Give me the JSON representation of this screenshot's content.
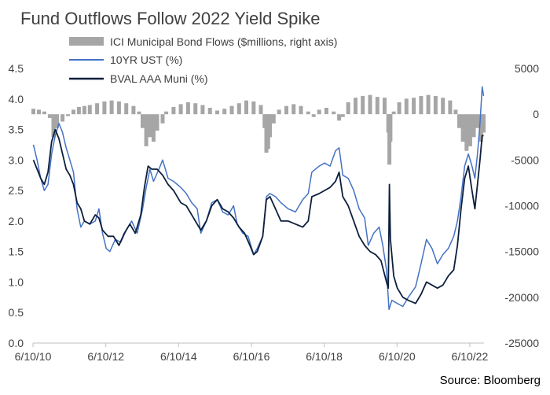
{
  "chart_data": {
    "type": "line",
    "title": "Fund Outflows Follow 2022 Yield Spike",
    "source": "Source: Bloomberg",
    "x_tick_labels": [
      "6/10/10",
      "6/10/12",
      "6/10/14",
      "6/10/16",
      "6/10/18",
      "6/10/20",
      "6/10/22"
    ],
    "x_range": [
      "2010-06-10",
      "2022-10-31"
    ],
    "left_axis": {
      "range": [
        0,
        4.5
      ],
      "tick_values": [
        0,
        0.5,
        1,
        1.5,
        2,
        2.5,
        3,
        3.5,
        4,
        4.5
      ],
      "tick_labels": [
        "0.0",
        "0.5",
        "1.0",
        "1.5",
        "2.0",
        "2.5",
        "3.0",
        "3.5",
        "4.0",
        "4.5"
      ]
    },
    "right_axis": {
      "range": [
        -25000,
        5000
      ],
      "tick_values": [
        -25000,
        -20000,
        -15000,
        -10000,
        -5000,
        0,
        5000
      ],
      "tick_labels": [
        "-25000",
        "-20000",
        "-15000",
        "-10000",
        "-5000",
        "0",
        "5000"
      ]
    },
    "series": [
      {
        "name": "ICI Municipal Bond Flows ($millions, right axis)",
        "type": "bar",
        "axis": "right",
        "color": "#a6a6a6",
        "points": [
          [
            2010.45,
            600
          ],
          [
            2010.6,
            500
          ],
          [
            2010.75,
            300
          ],
          [
            2010.9,
            -400
          ],
          [
            2011.0,
            -2500
          ],
          [
            2011.1,
            -1500
          ],
          [
            2011.25,
            -800
          ],
          [
            2011.4,
            -200
          ],
          [
            2011.55,
            500
          ],
          [
            2011.7,
            800
          ],
          [
            2011.85,
            900
          ],
          [
            2012.0,
            1000
          ],
          [
            2012.2,
            1200
          ],
          [
            2012.4,
            1400
          ],
          [
            2012.6,
            1500
          ],
          [
            2012.8,
            1400
          ],
          [
            2013.0,
            1200
          ],
          [
            2013.2,
            900
          ],
          [
            2013.35,
            300
          ],
          [
            2013.45,
            -1500
          ],
          [
            2013.55,
            -3500
          ],
          [
            2013.65,
            -2500
          ],
          [
            2013.75,
            -3000
          ],
          [
            2013.85,
            -1800
          ],
          [
            2014.0,
            -1000
          ],
          [
            2014.1,
            300
          ],
          [
            2014.3,
            800
          ],
          [
            2014.5,
            1100
          ],
          [
            2014.7,
            1300
          ],
          [
            2014.9,
            1200
          ],
          [
            2015.1,
            1000
          ],
          [
            2015.3,
            700
          ],
          [
            2015.5,
            400
          ],
          [
            2015.7,
            600
          ],
          [
            2015.9,
            900
          ],
          [
            2016.1,
            1200
          ],
          [
            2016.3,
            1500
          ],
          [
            2016.5,
            1400
          ],
          [
            2016.7,
            1000
          ],
          [
            2016.8,
            -1500
          ],
          [
            2016.85,
            -4200
          ],
          [
            2016.9,
            -3800
          ],
          [
            2016.95,
            -2500
          ],
          [
            2017.05,
            -1000
          ],
          [
            2017.2,
            500
          ],
          [
            2017.4,
            900
          ],
          [
            2017.6,
            1100
          ],
          [
            2017.8,
            900
          ],
          [
            2018.0,
            300
          ],
          [
            2018.15,
            -300
          ],
          [
            2018.3,
            500
          ],
          [
            2018.5,
            700
          ],
          [
            2018.7,
            300
          ],
          [
            2018.85,
            -700
          ],
          [
            2018.95,
            -300
          ],
          [
            2019.1,
            1300
          ],
          [
            2019.3,
            1800
          ],
          [
            2019.5,
            2000
          ],
          [
            2019.7,
            2100
          ],
          [
            2019.9,
            1900
          ],
          [
            2020.1,
            1800
          ],
          [
            2020.2,
            -2000
          ],
          [
            2020.23,
            -5500
          ],
          [
            2020.26,
            -3000
          ],
          [
            2020.35,
            300
          ],
          [
            2020.5,
            1300
          ],
          [
            2020.7,
            1700
          ],
          [
            2020.9,
            1800
          ],
          [
            2021.1,
            2000
          ],
          [
            2021.3,
            2100
          ],
          [
            2021.5,
            2000
          ],
          [
            2021.7,
            1800
          ],
          [
            2021.9,
            1500
          ],
          [
            2022.05,
            500
          ],
          [
            2022.15,
            -1500
          ],
          [
            2022.25,
            -3000
          ],
          [
            2022.35,
            -4000
          ],
          [
            2022.45,
            -3500
          ],
          [
            2022.55,
            -2500
          ],
          [
            2022.65,
            -1500
          ],
          [
            2022.75,
            -3000
          ],
          [
            2022.82,
            -2000
          ]
        ]
      },
      {
        "name": "10YR UST (%)",
        "type": "line",
        "axis": "left",
        "color": "#4472c4",
        "points": [
          [
            2010.45,
            3.25
          ],
          [
            2010.55,
            3.0
          ],
          [
            2010.65,
            2.7
          ],
          [
            2010.75,
            2.5
          ],
          [
            2010.85,
            2.6
          ],
          [
            2010.95,
            3.1
          ],
          [
            2011.05,
            3.4
          ],
          [
            2011.15,
            3.6
          ],
          [
            2011.25,
            3.45
          ],
          [
            2011.35,
            3.2
          ],
          [
            2011.45,
            3.0
          ],
          [
            2011.55,
            2.8
          ],
          [
            2011.65,
            2.2
          ],
          [
            2011.75,
            1.9
          ],
          [
            2011.85,
            2.0
          ],
          [
            2012.0,
            1.95
          ],
          [
            2012.15,
            2.0
          ],
          [
            2012.25,
            2.2
          ],
          [
            2012.35,
            1.8
          ],
          [
            2012.45,
            1.55
          ],
          [
            2012.55,
            1.5
          ],
          [
            2012.7,
            1.7
          ],
          [
            2012.85,
            1.65
          ],
          [
            2013.0,
            1.85
          ],
          [
            2013.15,
            2.0
          ],
          [
            2013.3,
            1.8
          ],
          [
            2013.45,
            2.2
          ],
          [
            2013.55,
            2.55
          ],
          [
            2013.65,
            2.85
          ],
          [
            2013.75,
            2.65
          ],
          [
            2013.9,
            2.85
          ],
          [
            2014.0,
            3.0
          ],
          [
            2014.15,
            2.7
          ],
          [
            2014.3,
            2.65
          ],
          [
            2014.5,
            2.55
          ],
          [
            2014.65,
            2.45
          ],
          [
            2014.8,
            2.3
          ],
          [
            2014.95,
            2.2
          ],
          [
            2015.05,
            1.8
          ],
          [
            2015.2,
            2.0
          ],
          [
            2015.35,
            2.3
          ],
          [
            2015.5,
            2.35
          ],
          [
            2015.65,
            2.15
          ],
          [
            2015.8,
            2.1
          ],
          [
            2015.95,
            2.25
          ],
          [
            2016.05,
            1.95
          ],
          [
            2016.2,
            1.8
          ],
          [
            2016.35,
            1.75
          ],
          [
            2016.5,
            1.45
          ],
          [
            2016.6,
            1.55
          ],
          [
            2016.75,
            1.75
          ],
          [
            2016.85,
            2.4
          ],
          [
            2016.95,
            2.45
          ],
          [
            2017.1,
            2.4
          ],
          [
            2017.25,
            2.3
          ],
          [
            2017.45,
            2.2
          ],
          [
            2017.65,
            2.15
          ],
          [
            2017.85,
            2.35
          ],
          [
            2018.0,
            2.45
          ],
          [
            2018.1,
            2.8
          ],
          [
            2018.3,
            2.9
          ],
          [
            2018.45,
            2.95
          ],
          [
            2018.6,
            2.9
          ],
          [
            2018.75,
            3.15
          ],
          [
            2018.85,
            3.2
          ],
          [
            2018.95,
            2.75
          ],
          [
            2019.1,
            2.7
          ],
          [
            2019.25,
            2.5
          ],
          [
            2019.4,
            2.2
          ],
          [
            2019.55,
            2.05
          ],
          [
            2019.65,
            1.6
          ],
          [
            2019.8,
            1.8
          ],
          [
            2019.95,
            1.9
          ],
          [
            2020.05,
            1.6
          ],
          [
            2020.15,
            1.2
          ],
          [
            2020.22,
            0.55
          ],
          [
            2020.3,
            0.7
          ],
          [
            2020.45,
            0.65
          ],
          [
            2020.6,
            0.6
          ],
          [
            2020.75,
            0.75
          ],
          [
            2020.95,
            0.92
          ],
          [
            2021.1,
            1.3
          ],
          [
            2021.25,
            1.7
          ],
          [
            2021.4,
            1.55
          ],
          [
            2021.55,
            1.3
          ],
          [
            2021.7,
            1.45
          ],
          [
            2021.85,
            1.55
          ],
          [
            2022.0,
            1.75
          ],
          [
            2022.1,
            2.0
          ],
          [
            2022.2,
            2.4
          ],
          [
            2022.3,
            2.9
          ],
          [
            2022.4,
            3.1
          ],
          [
            2022.5,
            2.9
          ],
          [
            2022.58,
            2.7
          ],
          [
            2022.65,
            3.1
          ],
          [
            2022.72,
            3.6
          ],
          [
            2022.78,
            4.2
          ],
          [
            2022.82,
            4.05
          ]
        ]
      },
      {
        "name": "BVAL AAA Muni (%)",
        "type": "line",
        "axis": "left",
        "color": "#0d1f3c",
        "points": [
          [
            2010.45,
            3.0
          ],
          [
            2010.55,
            2.85
          ],
          [
            2010.65,
            2.7
          ],
          [
            2010.75,
            2.6
          ],
          [
            2010.85,
            2.8
          ],
          [
            2010.95,
            3.3
          ],
          [
            2011.05,
            3.5
          ],
          [
            2011.15,
            3.35
          ],
          [
            2011.25,
            3.1
          ],
          [
            2011.35,
            2.85
          ],
          [
            2011.45,
            2.75
          ],
          [
            2011.55,
            2.6
          ],
          [
            2011.65,
            2.3
          ],
          [
            2011.75,
            2.2
          ],
          [
            2011.85,
            2.0
          ],
          [
            2012.0,
            1.95
          ],
          [
            2012.15,
            2.1
          ],
          [
            2012.25,
            2.05
          ],
          [
            2012.35,
            1.85
          ],
          [
            2012.5,
            1.75
          ],
          [
            2012.65,
            1.75
          ],
          [
            2012.8,
            1.6
          ],
          [
            2012.95,
            1.8
          ],
          [
            2013.1,
            1.95
          ],
          [
            2013.25,
            1.8
          ],
          [
            2013.4,
            2.1
          ],
          [
            2013.5,
            2.55
          ],
          [
            2013.6,
            2.9
          ],
          [
            2013.7,
            2.85
          ],
          [
            2013.85,
            2.85
          ],
          [
            2014.0,
            2.75
          ],
          [
            2014.15,
            2.6
          ],
          [
            2014.3,
            2.5
          ],
          [
            2014.5,
            2.3
          ],
          [
            2014.65,
            2.25
          ],
          [
            2014.8,
            2.1
          ],
          [
            2014.95,
            1.95
          ],
          [
            2015.05,
            1.85
          ],
          [
            2015.2,
            2.0
          ],
          [
            2015.35,
            2.25
          ],
          [
            2015.5,
            2.35
          ],
          [
            2015.65,
            2.2
          ],
          [
            2015.8,
            2.15
          ],
          [
            2015.95,
            2.05
          ],
          [
            2016.1,
            1.9
          ],
          [
            2016.25,
            1.8
          ],
          [
            2016.4,
            1.6
          ],
          [
            2016.5,
            1.45
          ],
          [
            2016.6,
            1.5
          ],
          [
            2016.75,
            1.75
          ],
          [
            2016.85,
            2.35
          ],
          [
            2016.95,
            2.4
          ],
          [
            2017.1,
            2.2
          ],
          [
            2017.25,
            2.0
          ],
          [
            2017.45,
            2.0
          ],
          [
            2017.65,
            1.95
          ],
          [
            2017.85,
            1.9
          ],
          [
            2018.0,
            2.0
          ],
          [
            2018.1,
            2.4
          ],
          [
            2018.3,
            2.45
          ],
          [
            2018.45,
            2.5
          ],
          [
            2018.6,
            2.55
          ],
          [
            2018.75,
            2.65
          ],
          [
            2018.85,
            2.8
          ],
          [
            2018.95,
            2.4
          ],
          [
            2019.1,
            2.25
          ],
          [
            2019.25,
            2.0
          ],
          [
            2019.4,
            1.75
          ],
          [
            2019.55,
            1.6
          ],
          [
            2019.7,
            1.5
          ],
          [
            2019.85,
            1.45
          ],
          [
            2020.0,
            1.35
          ],
          [
            2020.15,
            1.0
          ],
          [
            2020.2,
            0.9
          ],
          [
            2020.23,
            2.6
          ],
          [
            2020.26,
            1.7
          ],
          [
            2020.35,
            1.1
          ],
          [
            2020.45,
            0.9
          ],
          [
            2020.6,
            0.75
          ],
          [
            2020.75,
            0.7
          ],
          [
            2020.95,
            0.65
          ],
          [
            2021.1,
            0.8
          ],
          [
            2021.25,
            1.0
          ],
          [
            2021.4,
            0.95
          ],
          [
            2021.55,
            0.9
          ],
          [
            2021.7,
            0.95
          ],
          [
            2021.85,
            1.1
          ],
          [
            2022.0,
            1.2
          ],
          [
            2022.1,
            1.6
          ],
          [
            2022.2,
            2.2
          ],
          [
            2022.3,
            2.7
          ],
          [
            2022.4,
            2.9
          ],
          [
            2022.5,
            2.5
          ],
          [
            2022.58,
            2.2
          ],
          [
            2022.65,
            2.6
          ],
          [
            2022.72,
            3.0
          ],
          [
            2022.78,
            3.4
          ],
          [
            2022.82,
            3.4
          ]
        ]
      }
    ],
    "legend_placement": "top-left",
    "grid": false
  }
}
